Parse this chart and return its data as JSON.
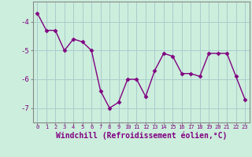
{
  "x": [
    0,
    1,
    2,
    3,
    4,
    5,
    6,
    7,
    8,
    9,
    10,
    11,
    12,
    13,
    14,
    15,
    16,
    17,
    18,
    19,
    20,
    21,
    22,
    23
  ],
  "y": [
    -3.7,
    -4.3,
    -4.3,
    -5.0,
    -4.6,
    -4.7,
    -5.0,
    -6.4,
    -7.0,
    -6.8,
    -6.0,
    -6.0,
    -6.6,
    -5.7,
    -5.1,
    -5.2,
    -5.8,
    -5.8,
    -5.9,
    -5.1,
    -5.1,
    -5.1,
    -5.9,
    -6.7
  ],
  "line_color": "#800080",
  "marker": "D",
  "marker_size": 2.5,
  "bg_color": "#cceedd",
  "grid_color": "#aacccc",
  "xlabel": "Windchill (Refroidissement éolien,°C)",
  "xlabel_fontsize": 7,
  "xtick_labels": [
    "0",
    "1",
    "2",
    "3",
    "4",
    "5",
    "6",
    "7",
    "8",
    "9",
    "10",
    "11",
    "12",
    "13",
    "14",
    "15",
    "16",
    "17",
    "18",
    "19",
    "20",
    "21",
    "22",
    "23"
  ],
  "ylim": [
    -7.5,
    -3.3
  ],
  "yticks": [
    -7,
    -6,
    -5,
    -4
  ],
  "ytick_labels": [
    "-7",
    "-6",
    "-5",
    "-4"
  ],
  "tick_fontsize": 6.5,
  "line_width": 1.0,
  "spine_color": "#888888"
}
